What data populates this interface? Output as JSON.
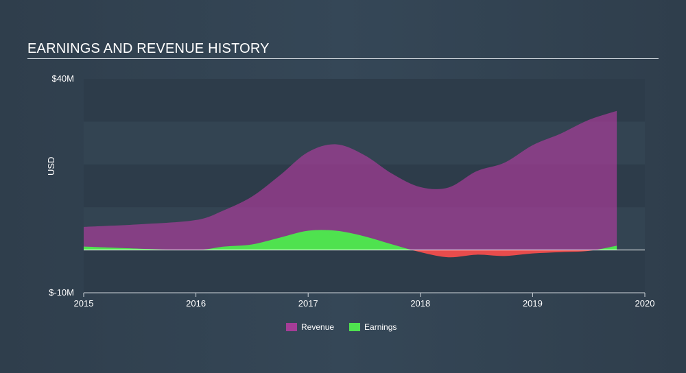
{
  "title": "EARNINGS AND REVENUE HISTORY",
  "chart_data": {
    "type": "area",
    "title": "EARNINGS AND REVENUE HISTORY",
    "xlabel": "",
    "ylabel": "USD",
    "xlim": [
      2015,
      2020
    ],
    "ylim": [
      -10,
      40
    ],
    "x_ticks": [
      "2015",
      "2016",
      "2017",
      "2018",
      "2019",
      "2020"
    ],
    "y_ticks": [
      "$40M",
      "$-10M"
    ],
    "legend_position": "bottom-center",
    "x": [
      2015,
      2015.5,
      2016,
      2016.25,
      2016.5,
      2016.75,
      2017,
      2017.25,
      2017.5,
      2017.75,
      2018,
      2018.25,
      2018.5,
      2018.75,
      2019,
      2019.25,
      2019.5,
      2019.75
    ],
    "series": [
      {
        "name": "Revenue",
        "color": "#a53d97",
        "values": [
          5.4,
          6.0,
          7.0,
          9.3,
          12.5,
          17.5,
          22.9,
          24.7,
          22.2,
          17.8,
          14.7,
          14.6,
          18.4,
          20.4,
          24.5,
          27.2,
          30.4,
          32.5
        ]
      },
      {
        "name": "Earnings",
        "color": "#4fe24f",
        "negative_color": "#e84c4c",
        "values": [
          0.8,
          0.3,
          0.0,
          0.8,
          1.3,
          2.9,
          4.5,
          4.5,
          3.2,
          1.3,
          -0.5,
          -1.7,
          -1.1,
          -1.4,
          -0.8,
          -0.5,
          -0.2,
          1.0
        ]
      }
    ]
  },
  "legend": {
    "revenue": "Revenue",
    "earnings": "Earnings"
  }
}
